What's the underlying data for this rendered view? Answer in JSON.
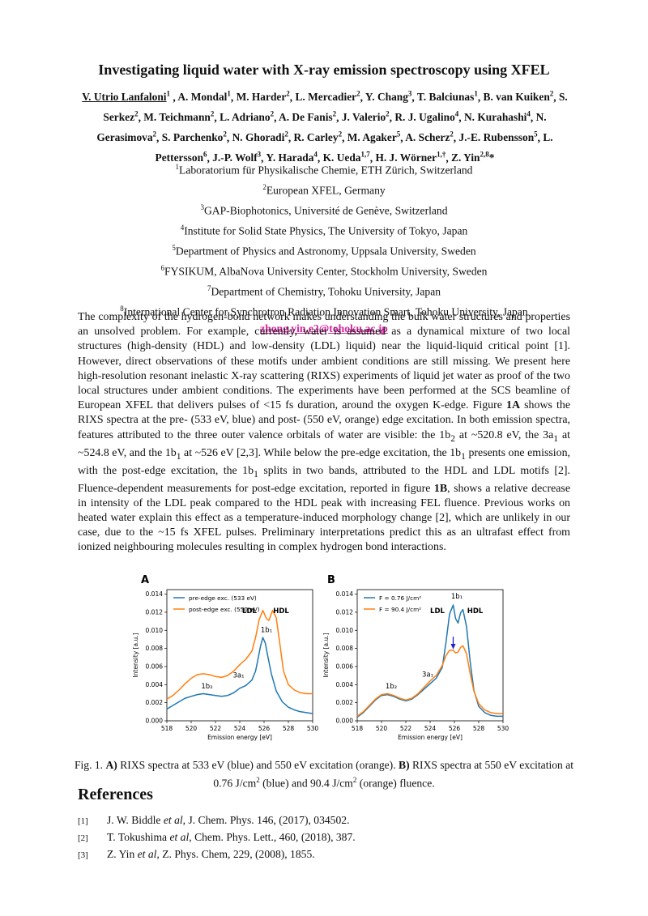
{
  "title": "Investigating liquid water with X-ray emission spectroscopy using XFEL",
  "authors": [
    {
      "name": "V. Utrio Lanfaloni",
      "sup": "1",
      "first": true
    },
    {
      "name": "A. Mondal",
      "sup": "1"
    },
    {
      "name": "M. Harder",
      "sup": "2"
    },
    {
      "name": "L. Mercadier",
      "sup": "2"
    },
    {
      "name": "Y. Chang",
      "sup": "3"
    },
    {
      "name": "T. Balciunas",
      "sup": "1"
    },
    {
      "name": "B. van Kuiken",
      "sup": "2"
    },
    {
      "name": "S. Serkez",
      "sup": "2"
    },
    {
      "name": "M. Teichmann",
      "sup": "2"
    },
    {
      "name": "L. Adriano",
      "sup": "2"
    },
    {
      "name": "A. De Fanis",
      "sup": "2"
    },
    {
      "name": "J. Valerio",
      "sup": "2"
    },
    {
      "name": "R. J. Ugalino",
      "sup": "4"
    },
    {
      "name": "N. Kurahashi",
      "sup": "4"
    },
    {
      "name": "N. Gerasimova",
      "sup": "2"
    },
    {
      "name": "S. Parchenko",
      "sup": "2"
    },
    {
      "name": "N. Ghoradi",
      "sup": "2"
    },
    {
      "name": "R. Carley",
      "sup": "2"
    },
    {
      "name": "M. Agaker",
      "sup": "5"
    },
    {
      "name": "A. Scherz",
      "sup": "2"
    },
    {
      "name": "J.-E. Rubensson",
      "sup": "5"
    },
    {
      "name": "L. Pettersson",
      "sup": "6"
    },
    {
      "name": "J.-P. Wolf",
      "sup": "3"
    },
    {
      "name": "Y. Harada",
      "sup": "4"
    },
    {
      "name": "K. Ueda",
      "sup": "1,7"
    },
    {
      "name": "H. J. Wörner",
      "sup": "1,†"
    },
    {
      "name": "Z. Yin",
      "sup": "2,8",
      "suffix": "*"
    }
  ],
  "affiliations": [
    {
      "sup": "1",
      "text": "Laboratorium für Physikalische Chemie, ETH Zürich, Switzerland"
    },
    {
      "sup": "2",
      "text": "European XFEL, Germany"
    },
    {
      "sup": "3",
      "text": "GAP-Biophotonics, Université de Genève, Switzerland"
    },
    {
      "sup": "4",
      "text": "Institute for Solid State Physics, The University of Tokyo, Japan"
    },
    {
      "sup": "5",
      "text": "Department of Physics and Astronomy, Uppsala University, Sweden"
    },
    {
      "sup": "6",
      "text": "FYSIKUM, AlbaNova University Center, Stockholm University, Sweden"
    },
    {
      "sup": "7",
      "text": "Department of Chemistry, Tohoku University, Japan"
    },
    {
      "sup": "8",
      "text": "International Center for Synchrotron Radiation Innovation Smart, Tohoku University, Japan"
    }
  ],
  "email": "zhong.yin.e2@tohoku.ac.jp",
  "abstract": {
    "s1": "The complexity of the hydrogen-bond network makes understanding the bulk water structures and properties an unsolved problem. For example, currently, water is assumed as a dynamical mixture of two local structures (high-density (HDL) and low-density (LDL) liquid) near the liquid-liquid critical point [1]. However, direct observations of these motifs under ambient conditions are still missing. We present here high-resolution resonant inelastic X-ray scattering (RIXS) experiments of liquid jet water as proof of the two local structures under ambient conditions. The experiments have been performed at the SCS beamline of European XFEL that delivers pulses of <15 fs duration, around the oxygen K-edge. Figure ",
    "fig1a": "1A",
    "s2": " shows the RIXS spectra at the pre- (533 eV, blue) and post- (550 eV, orange) edge excitation. In both emission spectra, features attributed to the three outer valence orbitals of water are visible: the 1b",
    "sub_2": "2",
    "s3": " at ~520.8 eV, the 3a",
    "sub_1a": "1",
    "s4": " at ~524.8 eV, and the 1b",
    "sub_1b": "1",
    "s5": " at ~526 eV [2,3]. While below the pre-edge excitation, the 1b",
    "sub_1c": "1",
    "s6": " presents one emission, with the post-edge excitation, the 1b",
    "sub_1d": "1",
    "s7": " splits in two bands, attributed to the HDL and LDL motifs [2]. Fluence-dependent measurements for post-edge excitation, reported in figure ",
    "fig1b": "1B",
    "s8": ", shows a relative decrease in intensity of the LDL peak compared to the HDL peak with increasing FEL fluence. Previous works on heated water explain this effect as a temperature-induced morphology change [2], which are unlikely in our case, due to the ~15 fs XFEL pulses. Preliminary interpretations predict this as an ultrafast effect from ionized neighbouring molecules resulting in complex hydrogen bond interactions."
  },
  "colors": {
    "blue": "#1f77b4",
    "orange": "#ff7f0e",
    "arrow": "#2222cc"
  },
  "chart_data": [
    {
      "type": "line",
      "panel_label": "A",
      "xlabel": "Emission energy [eV]",
      "ylabel": "Intensity [a.u.]",
      "xlim": [
        518,
        530
      ],
      "ylim": [
        0,
        0.0145
      ],
      "xticks": [
        518,
        520,
        522,
        524,
        526,
        528,
        530
      ],
      "yticks": [
        0.0,
        0.002,
        0.004,
        0.006,
        0.008,
        0.01,
        0.012,
        0.014
      ],
      "legend_position": "top-left",
      "series": [
        {
          "name": "pre-edge exc. (533 eV)",
          "color": "#1f77b4",
          "x": [
            518,
            518.5,
            519,
            519.5,
            520,
            520.5,
            521,
            521.5,
            522,
            522.5,
            523,
            523.5,
            524,
            524.5,
            525,
            525.3,
            525.5,
            525.7,
            525.9,
            526.1,
            526.3,
            526.6,
            527,
            527.5,
            528,
            528.5,
            529,
            529.5,
            530
          ],
          "y": [
            0.0013,
            0.0017,
            0.0021,
            0.0025,
            0.0027,
            0.0029,
            0.003,
            0.0029,
            0.0028,
            0.0027,
            0.0028,
            0.0031,
            0.0036,
            0.0039,
            0.0045,
            0.0055,
            0.0068,
            0.0082,
            0.0092,
            0.0086,
            0.0072,
            0.0052,
            0.0033,
            0.0021,
            0.0015,
            0.0012,
            0.001,
            0.0009,
            0.0008
          ]
        },
        {
          "name": "post-edge exc. (550 eV)",
          "color": "#ff7f0e",
          "x": [
            518,
            518.5,
            519,
            519.5,
            520,
            520.5,
            521,
            521.5,
            522,
            522.5,
            523,
            523.5,
            524,
            524.5,
            525,
            525.3,
            525.6,
            525.9,
            526.2,
            526.4,
            526.7,
            527,
            527.3,
            527.6,
            528,
            528.5,
            529,
            529.5,
            530
          ],
          "y": [
            0.0024,
            0.0028,
            0.0034,
            0.0041,
            0.0047,
            0.0051,
            0.0052,
            0.0051,
            0.0049,
            0.0048,
            0.005,
            0.0055,
            0.0062,
            0.0068,
            0.0077,
            0.0092,
            0.0112,
            0.0122,
            0.0113,
            0.0111,
            0.0122,
            0.0114,
            0.0085,
            0.0055,
            0.004,
            0.0034,
            0.0031,
            0.003,
            0.003
          ]
        }
      ],
      "annotations": [
        {
          "text": "LDL",
          "x": 524.8,
          "y": 0.0119
        },
        {
          "text": "HDL",
          "x": 527.4,
          "y": 0.0119
        },
        {
          "text": "1b₁",
          "x": 526.2,
          "y": 0.0098
        },
        {
          "text": "3a₁",
          "x": 523.9,
          "y": 0.0048
        },
        {
          "text": "1b₂",
          "x": 521.3,
          "y": 0.0036
        }
      ]
    },
    {
      "type": "line",
      "panel_label": "B",
      "xlabel": "Emission energy [eV]",
      "ylabel": "Intensity [a.u.]",
      "xlim": [
        518,
        530
      ],
      "ylim": [
        0,
        0.0145
      ],
      "xticks": [
        518,
        520,
        522,
        524,
        526,
        528,
        530
      ],
      "yticks": [
        0.0,
        0.002,
        0.004,
        0.006,
        0.008,
        0.01,
        0.012,
        0.014
      ],
      "legend_position": "top-left",
      "series": [
        {
          "name": "F = 0.76 J/cm²",
          "color": "#1f77b4",
          "x": [
            518,
            518.5,
            519,
            519.5,
            520,
            520.5,
            521,
            521.5,
            522,
            522.5,
            523,
            523.5,
            524,
            524.5,
            525,
            525.3,
            525.6,
            525.9,
            526.1,
            526.3,
            526.5,
            526.7,
            527,
            527.3,
            527.6,
            528,
            528.5,
            529,
            529.5,
            530
          ],
          "y": [
            0.0004,
            0.0009,
            0.0016,
            0.0023,
            0.0028,
            0.0029,
            0.0027,
            0.0024,
            0.0022,
            0.0024,
            0.0029,
            0.0035,
            0.0041,
            0.0047,
            0.0059,
            0.0086,
            0.0118,
            0.0128,
            0.0113,
            0.0108,
            0.0119,
            0.0123,
            0.0104,
            0.0065,
            0.0034,
            0.0016,
            0.0009,
            0.0006,
            0.0005,
            0.0005
          ]
        },
        {
          "name": "F = 90.4 J/cm²",
          "color": "#ff7f0e",
          "x": [
            518,
            518.5,
            519,
            519.5,
            520,
            520.5,
            521,
            521.5,
            522,
            522.5,
            523,
            523.5,
            524,
            524.5,
            525,
            525.3,
            525.6,
            525.9,
            526.1,
            526.3,
            526.5,
            526.7,
            527,
            527.3,
            527.6,
            528,
            528.5,
            529,
            529.5,
            530
          ],
          "y": [
            0.0005,
            0.001,
            0.0017,
            0.0024,
            0.0029,
            0.003,
            0.0028,
            0.0025,
            0.0023,
            0.0025,
            0.003,
            0.0037,
            0.0044,
            0.005,
            0.0061,
            0.0072,
            0.0078,
            0.0078,
            0.0075,
            0.0076,
            0.0081,
            0.0083,
            0.0074,
            0.0052,
            0.0033,
            0.0019,
            0.0012,
            0.0009,
            0.0008,
            0.0008
          ]
        }
      ],
      "annotations": [
        {
          "text": "LDL",
          "x": 524.6,
          "y": 0.0119
        },
        {
          "text": "1b₁",
          "x": 526.2,
          "y": 0.0135
        },
        {
          "text": "HDL",
          "x": 527.7,
          "y": 0.0119
        },
        {
          "text": "3a₁",
          "x": 523.8,
          "y": 0.0049
        },
        {
          "text": "1b₂",
          "x": 520.8,
          "y": 0.0036
        }
      ]
    }
  ],
  "caption": {
    "prefix": "Fig. 1. ",
    "a_label": "A)",
    "a_text": " RIXS spectra at 533 eV (blue) and 550 eV excitation (orange). ",
    "b_label": "B)",
    "b_text1": " RIXS spectra at 550 eV excitation at 0.76 J/cm",
    "b_sup1": "2",
    "b_text2": " (blue) and 90.4 J/cm",
    "b_sup2": "2",
    "b_text3": " (orange) fluence."
  },
  "references_heading": "References",
  "references": [
    {
      "num": "[1]",
      "pre": "J. W. Biddle ",
      "etal": "et al",
      "post": ", J. Chem. Phys. 146, (2017), 034502."
    },
    {
      "num": "[2]",
      "pre": "T. Tokushima ",
      "etal": "et al",
      "post": ", Chem. Phys. Lett., 460, (2018), 387."
    },
    {
      "num": "[3]",
      "pre": "Z. Yin ",
      "etal": "et al,",
      "post": " Z. Phys. Chem, 229, (2008), 1855."
    }
  ]
}
